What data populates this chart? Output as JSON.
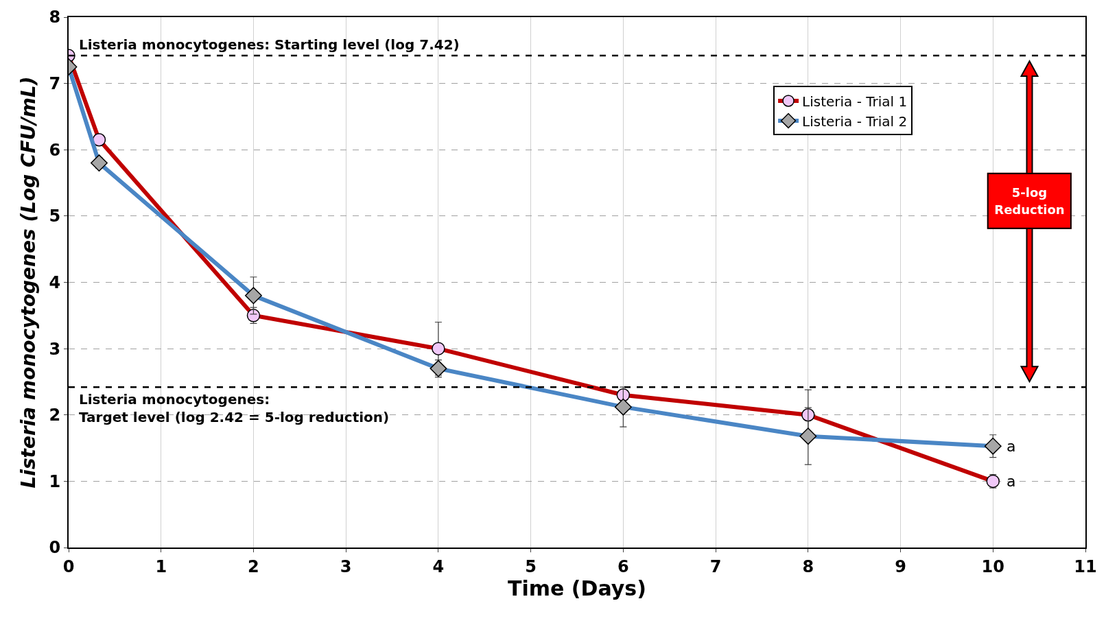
{
  "chart_data": {
    "type": "line",
    "xlabel": "Time (Days)",
    "ylabel": "Listeria monocytogenes (Log CFU/mL)",
    "xlim": [
      0,
      11
    ],
    "xticks": [
      0,
      1,
      2,
      3,
      4,
      5,
      6,
      7,
      8,
      9,
      10,
      11
    ],
    "ylim": [
      0,
      8
    ],
    "yticks": [
      0,
      1,
      2,
      3,
      4,
      5,
      6,
      7,
      8
    ],
    "grid": true,
    "legend": "top right",
    "line_style": "solid",
    "x": [
      0,
      0.33,
      2,
      4,
      6,
      8,
      10
    ],
    "series": [
      {
        "name": "Listeria - Trial 1",
        "color": "#c00000",
        "marker": "circle",
        "values": [
          7.42,
          6.15,
          3.5,
          3.0,
          2.3,
          2.0,
          1.0
        ],
        "errors": [
          null,
          null,
          0.12,
          0.4,
          null,
          0.38,
          0.1
        ]
      },
      {
        "name": "Listeria - Trial 2",
        "color": "#4a86c5",
        "marker": "diamond",
        "values": [
          7.25,
          5.8,
          3.8,
          2.7,
          2.12,
          1.68,
          1.53
        ],
        "errors": [
          null,
          0.08,
          0.28,
          0.13,
          0.3,
          0.43,
          0.17
        ]
      }
    ],
    "ref_lines": [
      {
        "axis": "y",
        "value": 7.42,
        "label": "Listeria monocytogenes: Starting level (log 7.42)",
        "color": "#000000",
        "line_style": "dashed"
      },
      {
        "axis": "y",
        "value": 2.42,
        "label": "Listeria monocytogenes:\nTarget level (log 2.42 = 5-log reduction)",
        "color": "#000000",
        "line_style": "dashed"
      }
    ],
    "annotations": [
      {
        "text": "a",
        "x": 10,
        "y": 1.53
      },
      {
        "text": "a",
        "x": 10,
        "y": 1.0
      },
      "5-log\nReduction"
    ]
  }
}
